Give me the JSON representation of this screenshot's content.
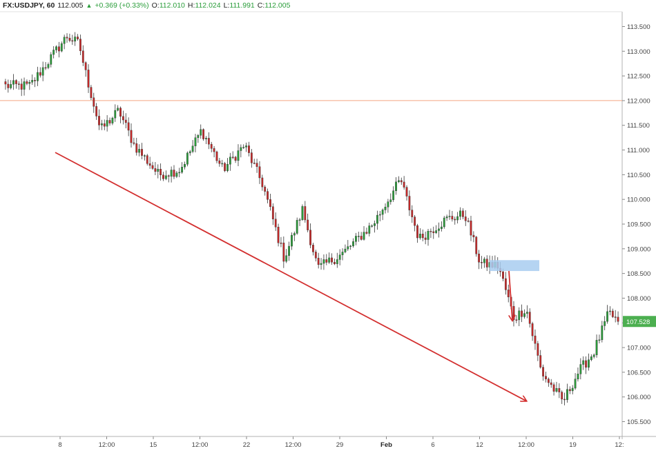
{
  "header": {
    "symbol": "FX:USDJPY, 60",
    "last": "112.005",
    "change_icon": "up-triangle-icon",
    "change": "+0.369 (+0.33%)",
    "o_label": "O:",
    "o": "112.010",
    "h_label": "H:",
    "h": "112.024",
    "l_label": "L:",
    "l": "111.991",
    "c_label": "C:",
    "c": "112.005"
  },
  "colors": {
    "up": "#2a9d3a",
    "down": "#c62828",
    "wick": "#333333",
    "trend": "#d32f2f",
    "hline": "#f4a582",
    "zone": "#a8cdf0",
    "badge": "#4caf50"
  },
  "chart_data": {
    "type": "candlestick",
    "ylim": [
      105.2,
      113.8
    ],
    "y_ticks": [
      "113.500",
      "113.000",
      "112.500",
      "112.000",
      "111.500",
      "111.000",
      "110.500",
      "110.000",
      "109.500",
      "109.000",
      "108.500",
      "108.000",
      "107.500",
      "107.000",
      "106.500",
      "106.000",
      "105.500"
    ],
    "x_ticks": [
      {
        "label": "8",
        "bold": false
      },
      {
        "label": "12:00",
        "bold": false
      },
      {
        "label": "15",
        "bold": false
      },
      {
        "label": "12:00",
        "bold": false
      },
      {
        "label": "22",
        "bold": false
      },
      {
        "label": "12:00",
        "bold": false
      },
      {
        "label": "29",
        "bold": false
      },
      {
        "label": "Feb",
        "bold": true
      },
      {
        "label": "6",
        "bold": false
      },
      {
        "label": "12",
        "bold": false
      },
      {
        "label": "12:00",
        "bold": false
      },
      {
        "label": "19",
        "bold": false
      },
      {
        "label": "12:",
        "bold": false
      }
    ],
    "current_price": "107.528",
    "horizontal_line": 112.0,
    "key_points": [
      [
        0,
        112.3
      ],
      [
        0.04,
        112.3
      ],
      [
        0.07,
        112.8
      ],
      [
        0.1,
        113.3
      ],
      [
        0.12,
        113.15
      ],
      [
        0.13,
        112.6
      ],
      [
        0.155,
        111.4
      ],
      [
        0.185,
        111.8
      ],
      [
        0.21,
        111.1
      ],
      [
        0.25,
        110.5
      ],
      [
        0.285,
        110.6
      ],
      [
        0.32,
        111.4
      ],
      [
        0.355,
        110.6
      ],
      [
        0.39,
        111.1
      ],
      [
        0.42,
        110.3
      ],
      [
        0.455,
        108.8
      ],
      [
        0.485,
        109.8
      ],
      [
        0.51,
        108.6
      ],
      [
        0.55,
        108.9
      ],
      [
        0.6,
        109.5
      ],
      [
        0.645,
        110.4
      ],
      [
        0.675,
        109.2
      ],
      [
        0.72,
        109.6
      ],
      [
        0.75,
        109.7
      ],
      [
        0.775,
        108.7
      ],
      [
        0.805,
        108.65
      ],
      [
        0.83,
        107.6
      ],
      [
        0.85,
        107.8
      ],
      [
        0.875,
        106.5
      ],
      [
        0.91,
        105.9
      ],
      [
        0.935,
        106.5
      ],
      [
        0.96,
        106.9
      ],
      [
        0.985,
        107.7
      ],
      [
        1.0,
        107.53
      ]
    ],
    "annotations": {
      "trend_arrow": {
        "from_price": 110.95,
        "to_price": 105.92
      },
      "zone": {
        "price_top": 108.77,
        "price_bottom": 108.55
      },
      "drop_arrow": {
        "from_price": 108.55,
        "to_price": 107.55
      }
    }
  }
}
